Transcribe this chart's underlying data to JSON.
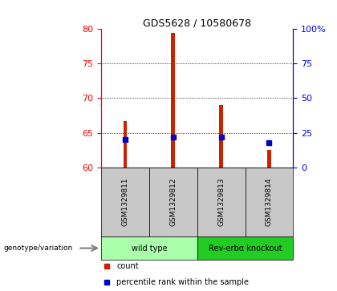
{
  "title": "GDS5628 / 10580678",
  "samples": [
    "GSM1329811",
    "GSM1329812",
    "GSM1329813",
    "GSM1329814"
  ],
  "bar_values": [
    66.7,
    79.5,
    69.0,
    62.5
  ],
  "percentile_values": [
    20.0,
    22.0,
    22.0,
    18.0
  ],
  "ylim_left": [
    60,
    80
  ],
  "ylim_right": [
    0,
    100
  ],
  "yticks_left": [
    60,
    65,
    70,
    75,
    80
  ],
  "yticks_right": [
    0,
    25,
    50,
    75,
    100
  ],
  "bar_color": "#cc2200",
  "dot_color": "#0000cc",
  "bg_label": "#c8c8c8",
  "groups": [
    {
      "label": "wild type",
      "indices": [
        0,
        1
      ],
      "color": "#aaffaa"
    },
    {
      "label": "Rev-erbα knockout",
      "indices": [
        2,
        3
      ],
      "color": "#22cc22"
    }
  ],
  "group_row_label": "genotype/variation",
  "legend_items": [
    {
      "color": "#cc2200",
      "label": "count"
    },
    {
      "color": "#0000cc",
      "label": "percentile rank within the sample"
    }
  ],
  "bar_width": 0.08
}
